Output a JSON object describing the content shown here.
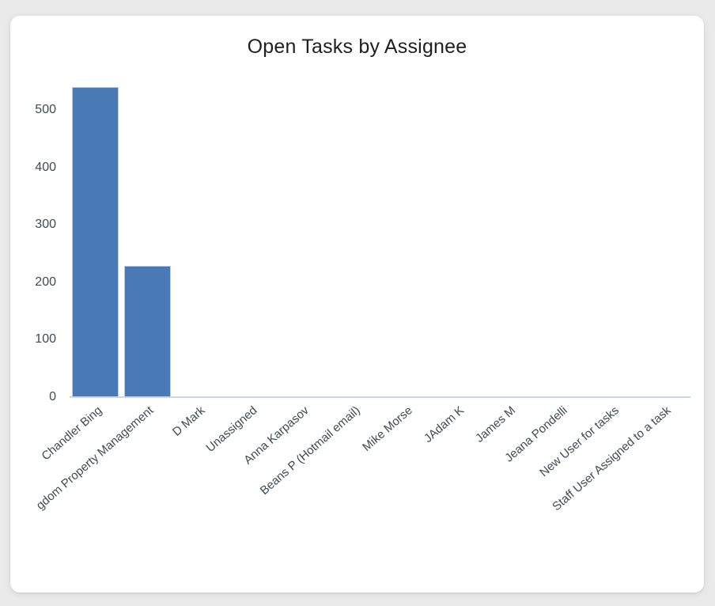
{
  "page": {
    "background_color": "#eaeaea",
    "card_background_color": "#ffffff"
  },
  "chart_data": {
    "type": "bar",
    "title": "Open Tasks by Assignee",
    "categories": [
      "Chandler Bing",
      "gdom Property Management",
      "D Mark",
      "Unassigned",
      "Anna Karpasov",
      "Beans P (Hotmail email)",
      "Mike Morse",
      "JAdam K",
      "James M",
      "Jeana Pondelli",
      "New User for tasks",
      "Staff User Assigned to a task"
    ],
    "values": [
      540,
      228,
      0,
      0,
      0,
      0,
      0,
      0,
      0,
      0,
      0,
      0
    ],
    "yticks": [
      "0",
      "100",
      "200",
      "300",
      "400",
      "500"
    ],
    "ytick_values": [
      0,
      100,
      200,
      300,
      400,
      500
    ],
    "ylim": [
      0,
      560
    ],
    "xlabel": "",
    "ylabel": "",
    "grid": false,
    "legend": false,
    "x_label_rotation_deg": -41,
    "colors": {
      "bar_fill": "#4a7ab5",
      "bar_border": "#b7cde9",
      "axis_line": "#ccd5e3",
      "tick_label": "#3e4a54",
      "title": "#1f1f1f"
    }
  }
}
